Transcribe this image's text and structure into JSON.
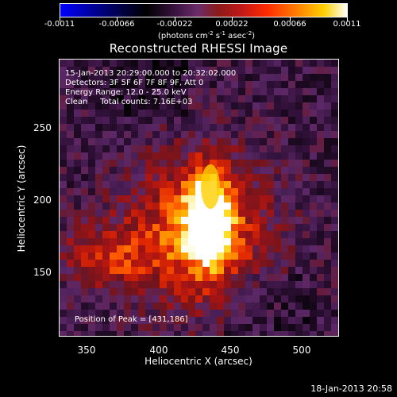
{
  "colorbar": {
    "ticks": [
      "-0.0011",
      "-0.00066",
      "-0.00022",
      "0.00022",
      "0.00066",
      "0.0011"
    ],
    "units_main": "(photons cm",
    "units_sup1": "-2",
    "units_mid": " s",
    "units_sup2": "-1",
    "units_mid2": " asec",
    "units_sup3": "-2",
    "units_end": ")"
  },
  "title": "Reconstructed RHESSI Image",
  "info": {
    "line1": "15-Jan-2013 20:29:00.000 to 20:32:02.000",
    "line2": "Detectors: 3F 5F 6F 7F 8F 9F, Att 0",
    "line3": "Energy Range: 12.0 - 25.0 keV",
    "line4": "Clean     Total counts: 7.16E+03"
  },
  "peak_label": "Position of Peak = [431,186]",
  "axes": {
    "x_label": "Heliocentric X (arcsec)",
    "y_label": "Heliocentric Y (arcsec)",
    "x_ticks": [
      "350",
      "400",
      "450",
      "500"
    ],
    "y_ticks": [
      "250",
      "200",
      "150"
    ],
    "x_range": [
      333,
      528
    ],
    "y_range": [
      104,
      297
    ]
  },
  "footer": "18-Jan-2013 20:58",
  "colors": {
    "background": "#000000",
    "peak": "#ffffff",
    "hot": "#ffd000",
    "mid": "#ff2a00",
    "cool": "#6b2c6b",
    "negative": "#0000ff"
  }
}
